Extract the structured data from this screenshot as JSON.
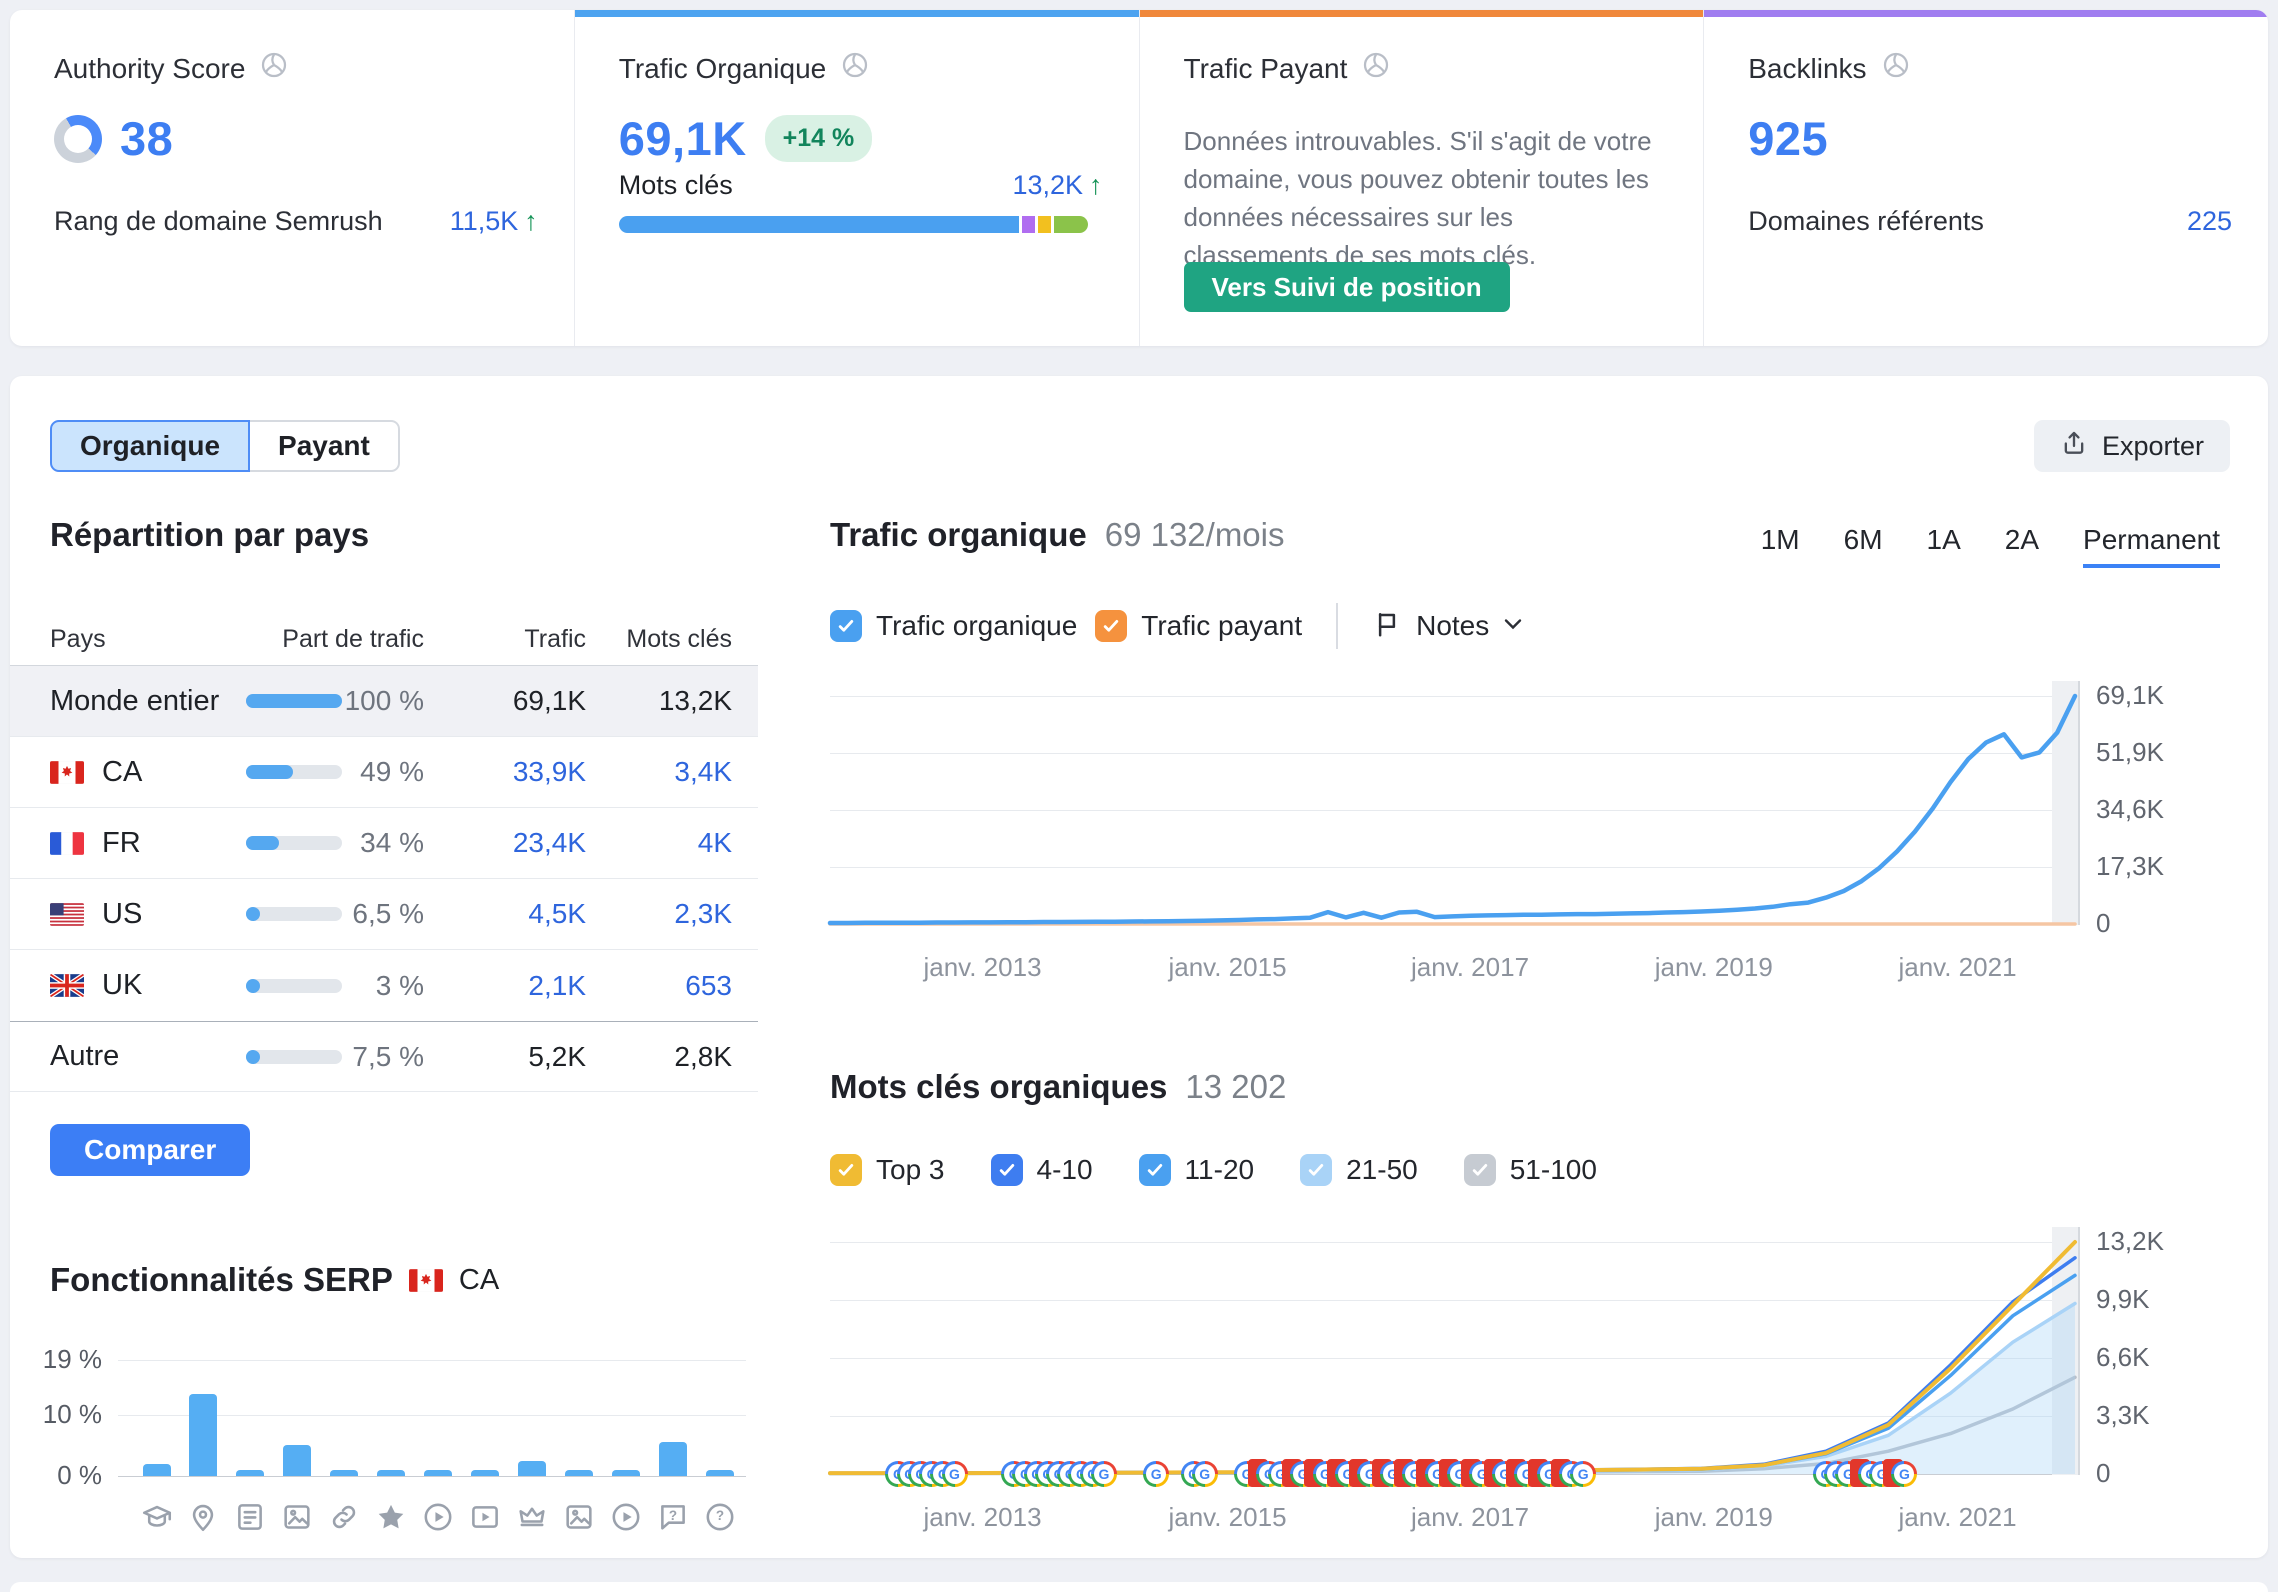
{
  "cards": {
    "authority": {
      "title": "Authority Score",
      "value": "38",
      "footer_label": "Rang de domaine Semrush",
      "footer_value": "11,5K"
    },
    "organic": {
      "title": "Trafic Organique",
      "value": "69,1K",
      "badge": "+14 %",
      "keywords_label": "Mots clés",
      "keywords_value": "13,2K",
      "accent": "#4da3f0"
    },
    "paid": {
      "title": "Trafic Payant",
      "message": "Données introuvables. S'il s'agit de votre domaine, vous pouvez obtenir toutes les données nécessaires sur les classements de ses mots clés.",
      "button_label": "Vers Suivi de position",
      "accent": "#f0883b"
    },
    "backlinks": {
      "title": "Backlinks",
      "value": "925",
      "footer_label": "Domaines référents",
      "footer_value": "225",
      "accent": "#a07df0"
    }
  },
  "toolbar": {
    "tab_organic": "Organique",
    "tab_paid": "Payant",
    "export_label": "Exporter"
  },
  "countries": {
    "title": "Répartition par pays",
    "columns": [
      "Pays",
      "Part de trafic",
      "Trafic",
      "Mots clés"
    ],
    "compare_label": "Comparer",
    "rows": [
      {
        "name": "Monde entier",
        "flag": null,
        "share": "100 %",
        "share_pct": 100,
        "traffic": "69,1K",
        "keywords": "13,2K",
        "selected": true,
        "link": false
      },
      {
        "name": "CA",
        "flag": "ca",
        "share": "49 %",
        "share_pct": 49,
        "traffic": "33,9K",
        "keywords": "3,4K",
        "selected": false,
        "link": true
      },
      {
        "name": "FR",
        "flag": "fr",
        "share": "34 %",
        "share_pct": 34,
        "traffic": "23,4K",
        "keywords": "4K",
        "selected": false,
        "link": true
      },
      {
        "name": "US",
        "flag": "us",
        "share": "6,5 %",
        "share_pct": 6.5,
        "traffic": "4,5K",
        "keywords": "2,3K",
        "selected": false,
        "link": true
      },
      {
        "name": "UK",
        "flag": "uk",
        "share": "3 %",
        "share_pct": 3,
        "traffic": "2,1K",
        "keywords": "653",
        "selected": false,
        "link": true
      },
      {
        "name": "Autre",
        "flag": null,
        "share": "7,5 %",
        "share_pct": 7.5,
        "traffic": "5,2K",
        "keywords": "2,8K",
        "selected": false,
        "link": false
      }
    ]
  },
  "serp_section": {
    "title": "Fonctionnalités SERP",
    "region": "CA"
  },
  "organic_chart_section": {
    "title": "Trafic organique",
    "subtitle": "69 132/mois",
    "ranges": [
      "1M",
      "6M",
      "1A",
      "2A",
      "Permanent"
    ],
    "active_range": "Permanent",
    "legend_organic": "Trafic organique",
    "legend_paid": "Trafic payant",
    "notes_label": "Notes"
  },
  "keywords_section": {
    "title": "Mots clés organiques",
    "subtitle": "13 202",
    "filters": [
      {
        "label": "Top 3",
        "color": "#f0bb33",
        "checked": true
      },
      {
        "label": "4-10",
        "color": "#3e7df0",
        "checked": true
      },
      {
        "label": "11-20",
        "color": "#4aa0f0",
        "checked": true
      },
      {
        "label": "21-50",
        "color": "#a9d3f7",
        "checked": true
      },
      {
        "label": "51-100",
        "color": "#c6cbd2",
        "checked": true
      }
    ]
  },
  "chart_data": [
    {
      "type": "bar",
      "title": "Fonctionnalités SERP",
      "region": "CA",
      "ytick_labels": [
        "19 %",
        "10 %",
        "0 %"
      ],
      "ytick_values": [
        19,
        10,
        0
      ],
      "ymax": 19,
      "bars": [
        {
          "icon": "graduation-cap",
          "value": 2
        },
        {
          "icon": "location-pin",
          "value": 13.5
        },
        {
          "icon": "article",
          "value": 1
        },
        {
          "icon": "image-frame",
          "value": 5
        },
        {
          "icon": "link",
          "value": 1
        },
        {
          "icon": "star",
          "value": 1
        },
        {
          "icon": "play-circle",
          "value": 1
        },
        {
          "icon": "video-frame",
          "value": 1
        },
        {
          "icon": "crown",
          "value": 2.5
        },
        {
          "icon": "image",
          "value": 1
        },
        {
          "icon": "play-circle-2",
          "value": 1
        },
        {
          "icon": "question-bubble",
          "value": 5.5
        },
        {
          "icon": "help-circle",
          "value": 1
        }
      ]
    },
    {
      "type": "line",
      "title": "Trafic organique",
      "subtitle": "69 132/mois",
      "x_ticks": [
        "janv. 2013",
        "janv. 2015",
        "janv. 2017",
        "janv. 2019",
        "janv. 2021"
      ],
      "y_ticks": [
        "69,1K",
        "51,9K",
        "34,6K",
        "17,3K",
        "0"
      ],
      "ymax": 69.1,
      "unit": "K",
      "grid": true,
      "legend_position": "top",
      "series": [
        {
          "name": "Trafic payant",
          "color": "#f5c6a3",
          "width": 3.5,
          "values": [
            0,
            0
          ]
        },
        {
          "name": "Trafic organique",
          "color": "#4aa0f0",
          "width": 4.5,
          "values": [
            0.3,
            0.3,
            0.35,
            0.35,
            0.4,
            0.4,
            0.45,
            0.45,
            0.5,
            0.5,
            0.55,
            0.55,
            0.6,
            0.6,
            0.65,
            0.7,
            0.7,
            0.75,
            0.8,
            0.85,
            0.9,
            1.0,
            1.1,
            1.2,
            1.4,
            1.5,
            1.7,
            1.9,
            3.6,
            2.0,
            3.4,
            1.9,
            3.5,
            3.7,
            2.1,
            2.3,
            2.5,
            2.6,
            2.7,
            2.8,
            2.8,
            2.9,
            3.0,
            3.0,
            3.1,
            3.2,
            3.3,
            3.5,
            3.6,
            3.8,
            4.0,
            4.3,
            4.7,
            5.2,
            6.0,
            6.5,
            8,
            10,
            13,
            17,
            22,
            28,
            35,
            43,
            50,
            55,
            57.5,
            50.5,
            52,
            58,
            69.1
          ]
        }
      ]
    },
    {
      "type": "area",
      "title": "Mots clés organiques",
      "total": "13 202",
      "x_ticks": [
        "janv. 2013",
        "janv. 2015",
        "janv. 2017",
        "janv. 2019",
        "janv. 2021"
      ],
      "y_ticks": [
        "13,2K",
        "9,9K",
        "6,6K",
        "3,3K",
        "0"
      ],
      "ymax": 13.2,
      "unit": "K",
      "grid": true,
      "series": [
        {
          "name": "51-100",
          "color": "#b9bfc9",
          "width": 3.5,
          "fill": false,
          "values": [
            0.02,
            0.02,
            0.03,
            0.03,
            0.04,
            0.04,
            0.05,
            0.06,
            0.07,
            0.08,
            0.09,
            0.1,
            0.12,
            0.14,
            0.16,
            0.3,
            0.6,
            1.3,
            2.3,
            3.7,
            5.5
          ]
        },
        {
          "name": "21-50",
          "color": "#a9d3f7",
          "width": 3.5,
          "fill": true,
          "values": [
            0.03,
            0.03,
            0.04,
            0.05,
            0.06,
            0.06,
            0.07,
            0.08,
            0.1,
            0.12,
            0.14,
            0.16,
            0.18,
            0.2,
            0.24,
            0.45,
            1.0,
            2.2,
            4.6,
            7.5,
            9.7
          ]
        },
        {
          "name": "11-20",
          "color": "#4aa0f0",
          "width": 3.5,
          "fill": false,
          "values": [
            0.04,
            0.04,
            0.05,
            0.06,
            0.07,
            0.08,
            0.09,
            0.1,
            0.12,
            0.14,
            0.16,
            0.18,
            0.2,
            0.24,
            0.28,
            0.5,
            1.15,
            2.6,
            5.6,
            9.0,
            11.3
          ]
        },
        {
          "name": "4-10",
          "color": "#3e7df0",
          "width": 3.5,
          "fill": false,
          "values": [
            0.05,
            0.05,
            0.06,
            0.07,
            0.08,
            0.09,
            0.1,
            0.11,
            0.13,
            0.16,
            0.18,
            0.2,
            0.23,
            0.27,
            0.32,
            0.55,
            1.3,
            2.9,
            6.2,
            9.8,
            12.3
          ]
        },
        {
          "name": "Top 3",
          "color": "#f0bb33",
          "width": 4,
          "fill": false,
          "values": [
            0.05,
            0.05,
            0.05,
            0.06,
            0.07,
            0.08,
            0.1,
            0.1,
            0.12,
            0.15,
            0.17,
            0.2,
            0.22,
            0.25,
            0.3,
            0.5,
            1.2,
            2.8,
            6.0,
            9.6,
            13.2
          ]
        }
      ],
      "google_updates": [
        [
          0.055,
          "g"
        ],
        [
          0.064,
          "g"
        ],
        [
          0.073,
          "g"
        ],
        [
          0.082,
          "g"
        ],
        [
          0.091,
          "g"
        ],
        [
          0.1,
          "g"
        ],
        [
          0.148,
          "g"
        ],
        [
          0.157,
          "g"
        ],
        [
          0.166,
          "g"
        ],
        [
          0.175,
          "g"
        ],
        [
          0.184,
          "g"
        ],
        [
          0.193,
          "g"
        ],
        [
          0.202,
          "g"
        ],
        [
          0.211,
          "g"
        ],
        [
          0.22,
          "g"
        ],
        [
          0.262,
          "g"
        ],
        [
          0.292,
          "g"
        ],
        [
          0.301,
          "g"
        ],
        [
          0.335,
          "g"
        ],
        [
          0.344,
          "r"
        ],
        [
          0.353,
          "g"
        ],
        [
          0.362,
          "g"
        ],
        [
          0.371,
          "r"
        ],
        [
          0.38,
          "g"
        ],
        [
          0.389,
          "r"
        ],
        [
          0.398,
          "g"
        ],
        [
          0.407,
          "r"
        ],
        [
          0.416,
          "g"
        ],
        [
          0.425,
          "r"
        ],
        [
          0.434,
          "g"
        ],
        [
          0.443,
          "r"
        ],
        [
          0.452,
          "g"
        ],
        [
          0.461,
          "r"
        ],
        [
          0.47,
          "g"
        ],
        [
          0.479,
          "r"
        ],
        [
          0.488,
          "g"
        ],
        [
          0.497,
          "r"
        ],
        [
          0.506,
          "g"
        ],
        [
          0.515,
          "r"
        ],
        [
          0.524,
          "g"
        ],
        [
          0.533,
          "r"
        ],
        [
          0.542,
          "g"
        ],
        [
          0.551,
          "r"
        ],
        [
          0.56,
          "g"
        ],
        [
          0.569,
          "r"
        ],
        [
          0.578,
          "g"
        ],
        [
          0.587,
          "r"
        ],
        [
          0.596,
          "g"
        ],
        [
          0.605,
          "g"
        ],
        [
          0.8,
          "g"
        ],
        [
          0.809,
          "g"
        ],
        [
          0.818,
          "g"
        ],
        [
          0.827,
          "r"
        ],
        [
          0.836,
          "g"
        ],
        [
          0.845,
          "g"
        ],
        [
          0.854,
          "r"
        ],
        [
          0.863,
          "g"
        ]
      ]
    }
  ]
}
